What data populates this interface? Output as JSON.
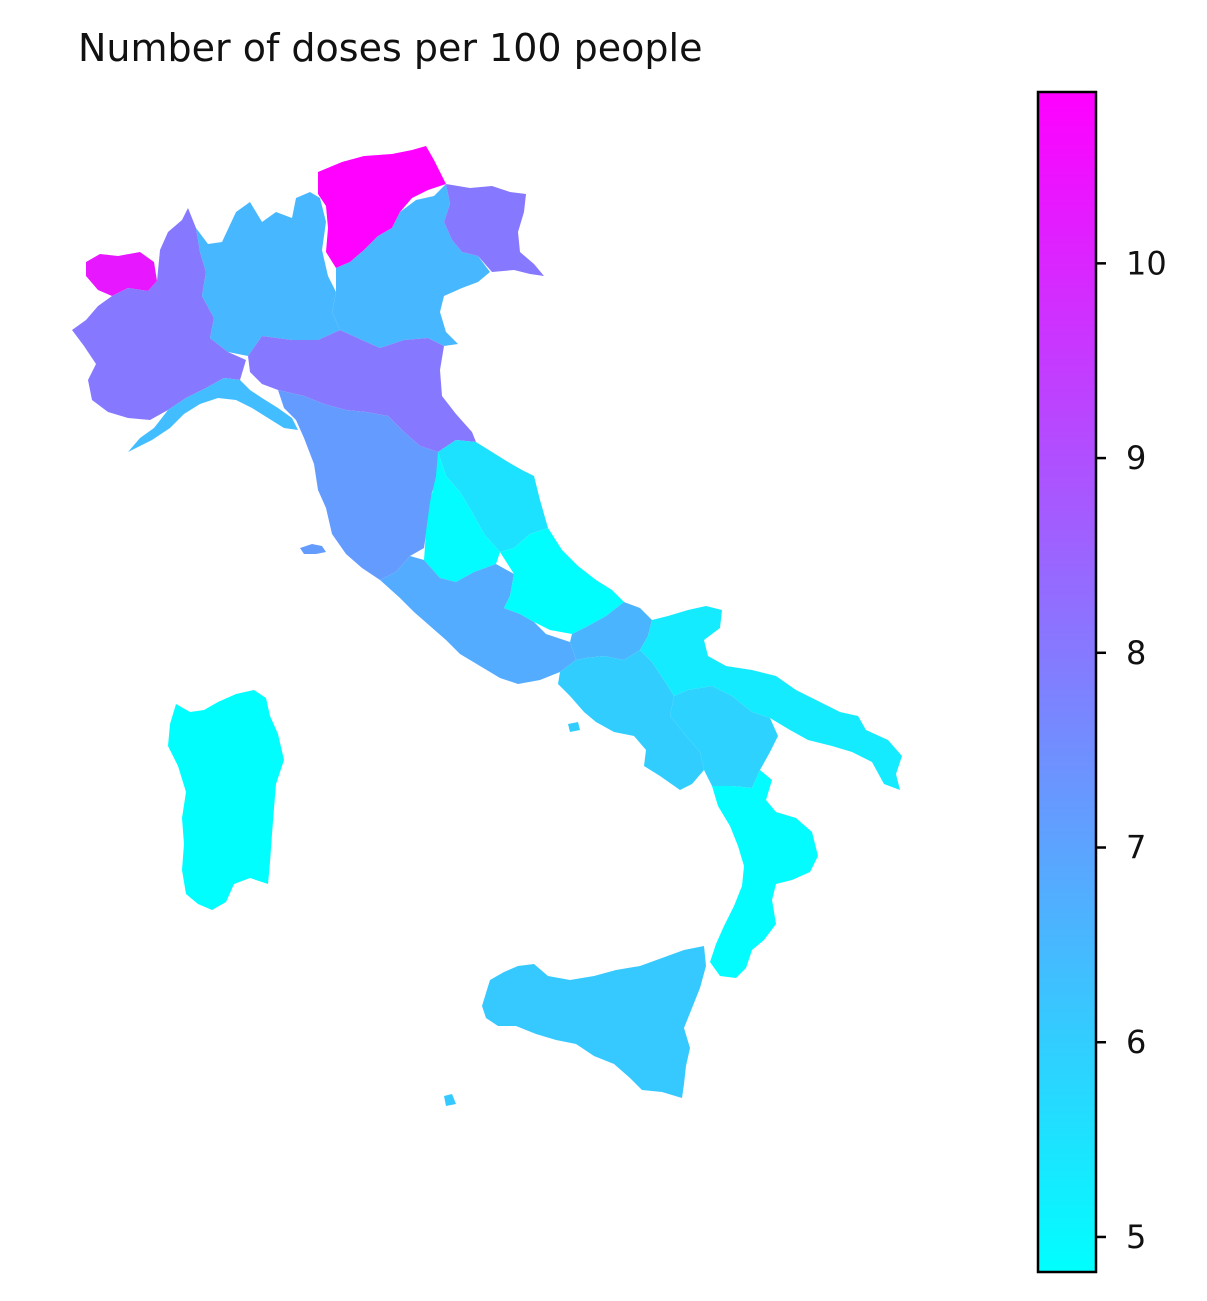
{
  "title": "Number of doses per 100 people",
  "colorbar": {
    "colormap": "cool",
    "vmin": 4.82,
    "vmax": 10.88,
    "low_color": "#00ffff",
    "high_color": "#ff00ff",
    "ticks": [
      {
        "value": 5,
        "label": "5"
      },
      {
        "value": 6,
        "label": "6"
      },
      {
        "value": 7,
        "label": "7"
      },
      {
        "value": 8,
        "label": "8"
      },
      {
        "value": 9,
        "label": "9"
      },
      {
        "value": 10,
        "label": "10"
      }
    ]
  },
  "regions": [
    {
      "id": "valle-d-aosta",
      "value": 10.3
    },
    {
      "id": "trentino-alto-adige",
      "value": 10.85
    },
    {
      "id": "piemonte",
      "value": 8.0
    },
    {
      "id": "lombardia",
      "value": 6.5
    },
    {
      "id": "veneto",
      "value": 6.5
    },
    {
      "id": "friuli-venezia-giulia",
      "value": 8.0
    },
    {
      "id": "liguria",
      "value": 6.4
    },
    {
      "id": "emilia-romagna",
      "value": 8.0
    },
    {
      "id": "toscana",
      "value": 7.2
    },
    {
      "id": "umbria",
      "value": 4.9
    },
    {
      "id": "marche",
      "value": 5.5
    },
    {
      "id": "lazio",
      "value": 6.8
    },
    {
      "id": "abruzzo",
      "value": 4.85
    },
    {
      "id": "molise",
      "value": 6.6
    },
    {
      "id": "campania",
      "value": 6.0
    },
    {
      "id": "puglia",
      "value": 5.3
    },
    {
      "id": "basilicata",
      "value": 5.9
    },
    {
      "id": "calabria",
      "value": 4.9
    },
    {
      "id": "sicilia",
      "value": 6.1
    },
    {
      "id": "sardegna",
      "value": 4.85
    }
  ]
}
